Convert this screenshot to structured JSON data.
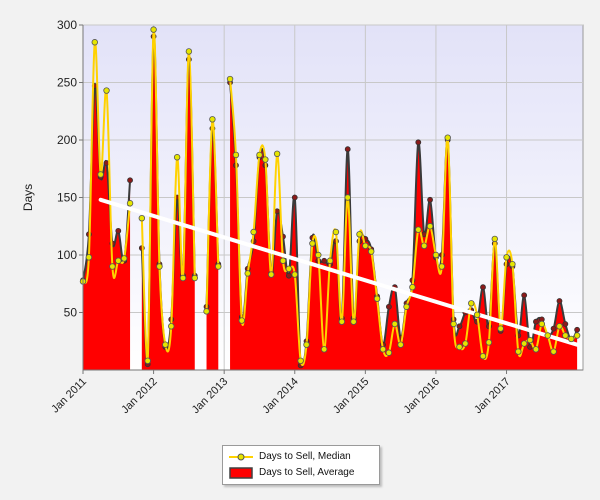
{
  "chart_data": {
    "type": "area",
    "ylabel": "Days",
    "ylim": [
      0,
      300
    ],
    "yticks": [
      50,
      100,
      150,
      200,
      250,
      300
    ],
    "x_tick_labels": [
      "Jan 2011",
      "Jan 2012",
      "Jan 2013",
      "Jan 2014",
      "Jan 2015",
      "Jan 2016",
      "Jan 2017"
    ],
    "x_range_months": 85,
    "grid": true,
    "legend_placement": "bottom",
    "series": [
      {
        "name": "Days to Sell, Median",
        "kind": "line",
        "color": "#ffd200",
        "values": [
          77,
          98,
          285,
          170,
          243,
          90,
          95,
          97,
          145,
          null,
          132,
          8,
          296,
          90,
          22,
          38,
          185,
          80,
          277,
          80,
          null,
          51,
          218,
          90,
          null,
          253,
          187,
          43,
          84,
          120,
          187,
          183,
          83,
          188,
          95,
          88,
          83,
          8,
          22,
          110,
          100,
          18,
          95,
          120,
          42,
          150,
          42,
          118,
          108,
          103,
          62,
          18,
          15,
          40,
          22,
          55,
          72,
          122,
          108,
          125,
          100,
          90,
          202,
          40,
          20,
          23,
          58,
          48,
          12,
          24,
          114,
          36,
          98,
          92,
          16,
          23,
          26,
          18,
          40,
          30,
          16,
          38,
          30,
          27,
          30
        ]
      },
      {
        "name": "Days to Sell, Average",
        "kind": "area",
        "color": "#ff0000",
        "values": [
          78,
          118,
          247,
          168,
          180,
          110,
          121,
          95,
          165,
          null,
          106,
          5,
          290,
          92,
          20,
          44,
          150,
          82,
          270,
          82,
          null,
          55,
          210,
          92,
          null,
          250,
          178,
          46,
          88,
          112,
          185,
          178,
          84,
          138,
          116,
          82,
          150,
          4,
          25,
          115,
          95,
          95,
          92,
          112,
          45,
          192,
          45,
          112,
          114,
          105,
          64,
          22,
          55,
          72,
          28,
          58,
          78,
          198,
          118,
          148,
          98,
          100,
          200,
          44,
          38,
          50,
          52,
          42,
          72,
          38,
          110,
          34,
          92,
          90,
          30,
          65,
          20,
          42,
          44,
          30,
          36,
          60,
          40,
          26,
          35
        ]
      }
    ],
    "trendline": {
      "start": 148,
      "end": 22,
      "start_index": 3,
      "end_index": 84,
      "color": "#ffffff"
    }
  },
  "legend": {
    "median_label": "Days to Sell, Median",
    "average_label": "Days to Sell, Average"
  }
}
